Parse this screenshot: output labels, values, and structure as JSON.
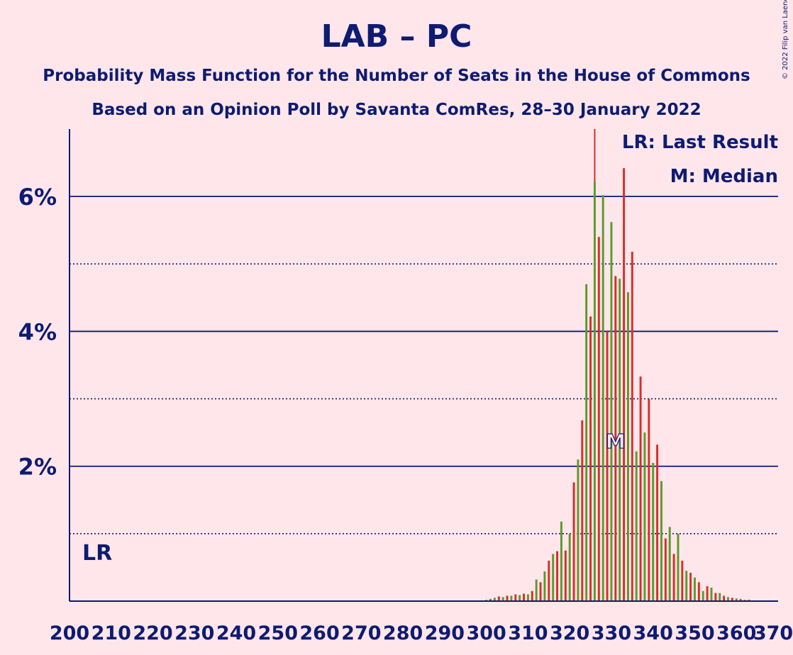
{
  "copyright": "© 2022 Filip van Laenen",
  "chart_data": {
    "type": "bar",
    "title": "LAB – PC",
    "subtitle_1": "Probability Mass Function for the Number of Seats in the House of Commons",
    "subtitle_2": "Based on an Opinion Poll by Savanta ComRes, 28–30 January 2022",
    "xlabel": "",
    "ylabel": "",
    "xlim": [
      200,
      370
    ],
    "ylim": [
      0,
      7
    ],
    "y_ticks": [
      2,
      4,
      6
    ],
    "y_tick_labels": [
      "2%",
      "4%",
      "6%"
    ],
    "y_grid_solid": [
      2,
      4,
      6
    ],
    "y_grid_dotted": [
      1,
      3,
      5
    ],
    "x_ticks": [
      200,
      210,
      220,
      230,
      240,
      250,
      260,
      270,
      280,
      290,
      300,
      310,
      320,
      330,
      340,
      350,
      360,
      370
    ],
    "x_tick_labels": [
      "200",
      "210",
      "220",
      "230",
      "240",
      "250",
      "260",
      "270",
      "280",
      "290",
      "300",
      "310",
      "320",
      "330",
      "340",
      "350",
      "360",
      "370"
    ],
    "legend": {
      "placement": "top-right",
      "lr_text": "LR: Last Result",
      "median_text": "M: Median"
    },
    "last_result": {
      "seat": 202,
      "label": "LR"
    },
    "median": {
      "seat": 331,
      "label": "M"
    },
    "colors": {
      "even": "#5a9b2a",
      "odd": "#d62f2a",
      "axis": "#0e1b72",
      "background": "#ffe6ea"
    },
    "seats": [
      296,
      297,
      298,
      299,
      300,
      301,
      302,
      303,
      304,
      305,
      306,
      307,
      308,
      309,
      310,
      311,
      312,
      313,
      314,
      315,
      316,
      317,
      318,
      319,
      320,
      321,
      322,
      323,
      324,
      325,
      326,
      327,
      328,
      329,
      330,
      331,
      332,
      333,
      334,
      335,
      336,
      337,
      338,
      339,
      340,
      341,
      342,
      343,
      344,
      345,
      346,
      347,
      348,
      349,
      350,
      351,
      352,
      353,
      354,
      355,
      356,
      357,
      358,
      359,
      360,
      361,
      362,
      363,
      364,
      365,
      366,
      367,
      368,
      369
    ],
    "values": [
      0.01,
      0.01,
      0.01,
      0.01,
      0.02,
      0.03,
      0.05,
      0.07,
      0.06,
      0.08,
      0.08,
      0.1,
      0.09,
      0.11,
      0.1,
      0.15,
      0.32,
      0.28,
      0.44,
      0.6,
      0.7,
      0.74,
      1.18,
      0.75,
      1.0,
      1.76,
      2.1,
      2.68,
      4.7,
      4.22,
      6.22,
      5.4,
      6.02,
      4.0,
      5.62,
      4.82,
      4.78,
      6.42,
      4.58,
      5.18,
      2.22,
      3.33,
      2.5,
      3.0,
      2.05,
      2.32,
      1.78,
      0.93,
      1.1,
      0.7,
      1.0,
      0.6,
      0.45,
      0.42,
      0.35,
      0.28,
      0.15,
      0.22,
      0.2,
      0.12,
      0.12,
      0.08,
      0.06,
      0.05,
      0.04,
      0.03,
      0.02,
      0.02,
      0.01,
      0.01,
      0.01,
      0.01,
      0.01,
      0.01
    ]
  }
}
